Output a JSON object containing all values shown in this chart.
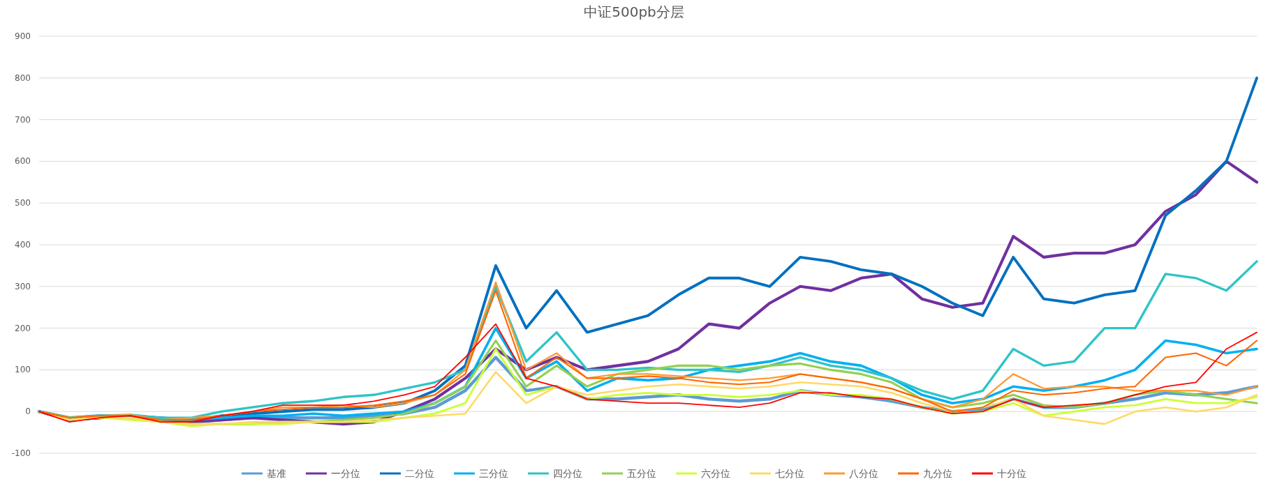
{
  "chart_data": {
    "type": "line",
    "title": "中证500pb分层",
    "categories": [
      null,
      null,
      null,
      null,
      null,
      null,
      null,
      null,
      null,
      null,
      null,
      null,
      null,
      null,
      null,
      null,
      null,
      null,
      null,
      null,
      null,
      null,
      null,
      null,
      null,
      null,
      null,
      null,
      null,
      null,
      null,
      null,
      null,
      null,
      null,
      null,
      null,
      null,
      null,
      null,
      null
    ],
    "ylim": [
      -100,
      900
    ],
    "yticks": [
      -100,
      0,
      100,
      200,
      300,
      400,
      500,
      600,
      700,
      800,
      900
    ],
    "grid": "y",
    "legend": "bottom",
    "marker": "none",
    "line_style": "solid",
    "series": [
      {
        "name": "基准",
        "color": "#5b9bd5",
        "values": [
          0,
          -15,
          -10,
          -12,
          -20,
          -25,
          -20,
          -15,
          -15,
          -15,
          -15,
          -10,
          -5,
          10,
          50,
          130,
          50,
          60,
          30,
          30,
          35,
          40,
          30,
          25,
          30,
          50,
          40,
          35,
          25,
          10,
          0,
          5,
          30,
          10,
          10,
          20,
          30,
          45,
          40,
          45,
          60
        ]
      },
      {
        "name": "一分位",
        "color": "#7030a0",
        "values": [
          0,
          -20,
          -15,
          -10,
          -20,
          -25,
          -20,
          -15,
          -20,
          -25,
          -30,
          -25,
          0,
          30,
          80,
          150,
          100,
          130,
          100,
          110,
          120,
          150,
          210,
          200,
          260,
          300,
          290,
          320,
          330,
          270,
          250,
          260,
          420,
          370,
          380,
          380,
          400,
          480,
          520,
          600,
          550
        ]
      },
      {
        "name": "二分位",
        "color": "#0070c0",
        "values": [
          0,
          -20,
          -15,
          -10,
          -15,
          -20,
          -10,
          -5,
          0,
          5,
          5,
          10,
          20,
          50,
          110,
          350,
          200,
          290,
          190,
          210,
          230,
          280,
          320,
          320,
          300,
          370,
          360,
          340,
          330,
          300,
          260,
          230,
          370,
          270,
          260,
          280,
          290,
          470,
          530,
          600,
          800
        ]
      },
      {
        "name": "三分位",
        "color": "#00b0f0",
        "values": [
          0,
          -15,
          -10,
          -10,
          -20,
          -20,
          -15,
          -10,
          -10,
          -5,
          -10,
          -5,
          0,
          20,
          60,
          200,
          80,
          120,
          50,
          80,
          75,
          80,
          100,
          110,
          120,
          140,
          120,
          110,
          80,
          40,
          20,
          30,
          60,
          50,
          60,
          75,
          100,
          170,
          160,
          140,
          150
        ]
      },
      {
        "name": "四分位",
        "color": "#2ec4c6",
        "values": [
          0,
          -15,
          -10,
          -8,
          -15,
          -15,
          0,
          10,
          20,
          25,
          35,
          40,
          55,
          70,
          100,
          300,
          120,
          190,
          100,
          100,
          105,
          100,
          100,
          95,
          110,
          130,
          110,
          100,
          80,
          50,
          30,
          50,
          150,
          110,
          120,
          200,
          200,
          330,
          320,
          290,
          360
        ]
      },
      {
        "name": "五分位",
        "color": "#92d050",
        "values": [
          0,
          -15,
          -12,
          -15,
          -25,
          -30,
          -30,
          -30,
          -25,
          -25,
          -20,
          -15,
          -5,
          20,
          60,
          170,
          60,
          110,
          60,
          90,
          100,
          110,
          110,
          100,
          110,
          115,
          100,
          90,
          70,
          30,
          10,
          20,
          40,
          15,
          10,
          20,
          40,
          50,
          40,
          30,
          20
        ]
      },
      {
        "name": "六分位",
        "color": "#ccff33",
        "values": [
          0,
          -20,
          -15,
          -20,
          -25,
          -35,
          -30,
          -30,
          -30,
          -25,
          -25,
          -25,
          -15,
          -5,
          20,
          150,
          40,
          60,
          30,
          40,
          45,
          40,
          40,
          35,
          40,
          50,
          40,
          40,
          30,
          10,
          -5,
          0,
          20,
          -10,
          0,
          10,
          15,
          30,
          20,
          20,
          35
        ]
      },
      {
        "name": "七分位",
        "color": "#ffd966",
        "values": [
          0,
          -20,
          -15,
          -15,
          -25,
          -30,
          -30,
          -25,
          -25,
          -25,
          -25,
          -20,
          -15,
          -10,
          -5,
          95,
          20,
          60,
          40,
          50,
          60,
          65,
          60,
          55,
          60,
          70,
          65,
          60,
          45,
          20,
          0,
          10,
          30,
          -10,
          -20,
          -30,
          0,
          10,
          0,
          10,
          40
        ]
      },
      {
        "name": "八分位",
        "color": "#ff9933",
        "values": [
          0,
          -15,
          -10,
          -8,
          -20,
          -15,
          -10,
          0,
          10,
          10,
          15,
          10,
          20,
          40,
          100,
          310,
          100,
          140,
          80,
          90,
          90,
          85,
          80,
          75,
          80,
          90,
          80,
          70,
          55,
          30,
          10,
          30,
          90,
          55,
          60,
          60,
          50,
          50,
          50,
          40,
          60
        ]
      },
      {
        "name": "九分位",
        "color": "#ff6600",
        "values": [
          0,
          -15,
          -10,
          -10,
          -20,
          -20,
          -10,
          0,
          5,
          10,
          10,
          15,
          25,
          40,
          90,
          290,
          80,
          130,
          80,
          80,
          85,
          80,
          70,
          65,
          70,
          90,
          80,
          70,
          55,
          30,
          0,
          10,
          50,
          40,
          45,
          55,
          60,
          130,
          140,
          110,
          170
        ]
      },
      {
        "name": "十分位",
        "color": "#ff0000",
        "values": [
          0,
          -25,
          -15,
          -10,
          -25,
          -25,
          -10,
          0,
          15,
          15,
          15,
          25,
          40,
          60,
          130,
          210,
          80,
          60,
          30,
          25,
          20,
          20,
          15,
          10,
          20,
          45,
          45,
          35,
          30,
          10,
          -5,
          0,
          30,
          10,
          15,
          20,
          40,
          60,
          70,
          150,
          190
        ]
      }
    ]
  }
}
